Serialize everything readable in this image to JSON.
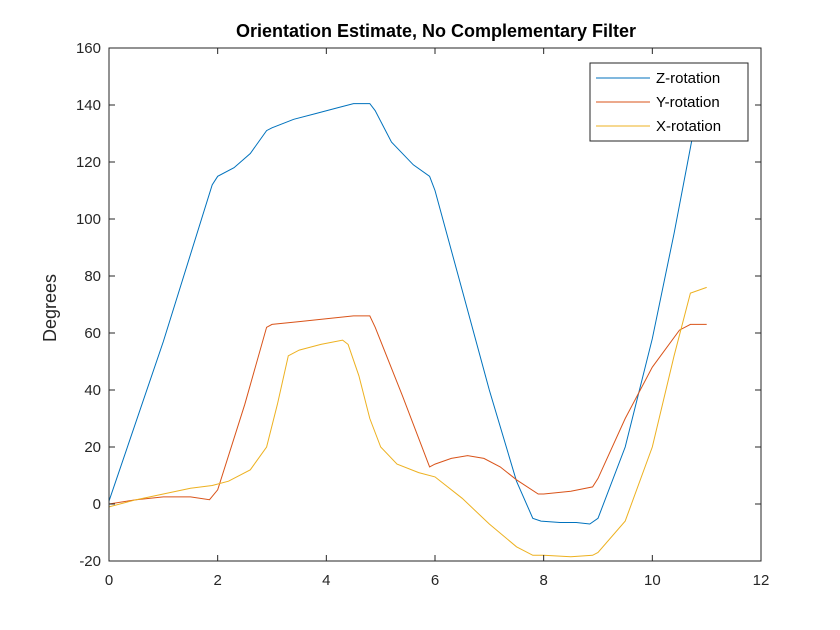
{
  "chart_data": {
    "type": "line",
    "title": "Orientation Estimate, No Complementary Filter",
    "xlabel": "",
    "ylabel": "Degrees",
    "xlim": [
      0,
      12
    ],
    "ylim": [
      -20,
      160
    ],
    "xticks": [
      0,
      2,
      4,
      6,
      8,
      10,
      12
    ],
    "yticks": [
      -20,
      0,
      20,
      40,
      60,
      80,
      100,
      120,
      140,
      160
    ],
    "grid": false,
    "legend_position": "top-right",
    "series": [
      {
        "name": "Z-rotation",
        "color": "#0072BD",
        "x": [
          0,
          1.0,
          1.9,
          2.0,
          2.3,
          2.6,
          2.9,
          3.0,
          3.4,
          3.8,
          4.2,
          4.5,
          4.8,
          4.9,
          5.2,
          5.6,
          5.9,
          6.0,
          6.5,
          7.0,
          7.5,
          7.8,
          7.95,
          8.3,
          8.6,
          8.85,
          9.0,
          9.5,
          10.0,
          10.4,
          10.65,
          10.75,
          10.85
        ],
        "y": [
          1,
          57,
          112,
          115,
          118,
          123,
          131,
          132,
          135,
          137,
          139,
          140.5,
          140.5,
          138,
          127,
          119,
          115,
          110,
          75,
          40,
          8,
          -5,
          -6,
          -6.5,
          -6.5,
          -7,
          -5,
          20,
          58,
          95,
          120,
          130,
          140
        ]
      },
      {
        "name": "Y-rotation",
        "color": "#D95319",
        "x": [
          0,
          0.5,
          1.0,
          1.5,
          1.85,
          2.0,
          2.5,
          2.9,
          3.0,
          3.5,
          4.0,
          4.5,
          4.8,
          4.9,
          5.4,
          5.9,
          6.0,
          6.3,
          6.6,
          6.9,
          7.2,
          7.5,
          7.9,
          8.0,
          8.5,
          8.9,
          9.0,
          9.5,
          10.0,
          10.5,
          10.7,
          11.0
        ],
        "y": [
          0,
          1.5,
          2.5,
          2.5,
          1.5,
          5,
          35,
          62,
          63,
          64,
          65,
          66,
          66,
          62,
          38,
          13,
          14,
          16,
          17,
          16,
          13,
          8.5,
          3.5,
          3.5,
          4.5,
          6,
          9,
          30,
          48,
          61,
          63,
          63
        ]
      },
      {
        "name": "X-rotation",
        "color": "#EDB120",
        "x": [
          0,
          0.5,
          1.0,
          1.5,
          1.9,
          2.2,
          2.6,
          2.9,
          3.1,
          3.3,
          3.5,
          3.9,
          4.3,
          4.4,
          4.6,
          4.8,
          5.0,
          5.3,
          5.7,
          6.0,
          6.5,
          7.0,
          7.5,
          7.8,
          8.0,
          8.5,
          8.9,
          9.0,
          9.5,
          10.0,
          10.4,
          10.7,
          11.0
        ],
        "y": [
          -1,
          1.5,
          3.5,
          5.5,
          6.5,
          8,
          12,
          20,
          35,
          52,
          54,
          56,
          57.5,
          56,
          45,
          30,
          20,
          14,
          11,
          9.5,
          2,
          -7,
          -15,
          -18,
          -18,
          -18.5,
          -18,
          -17,
          -6,
          20,
          52,
          74,
          76
        ]
      }
    ]
  }
}
